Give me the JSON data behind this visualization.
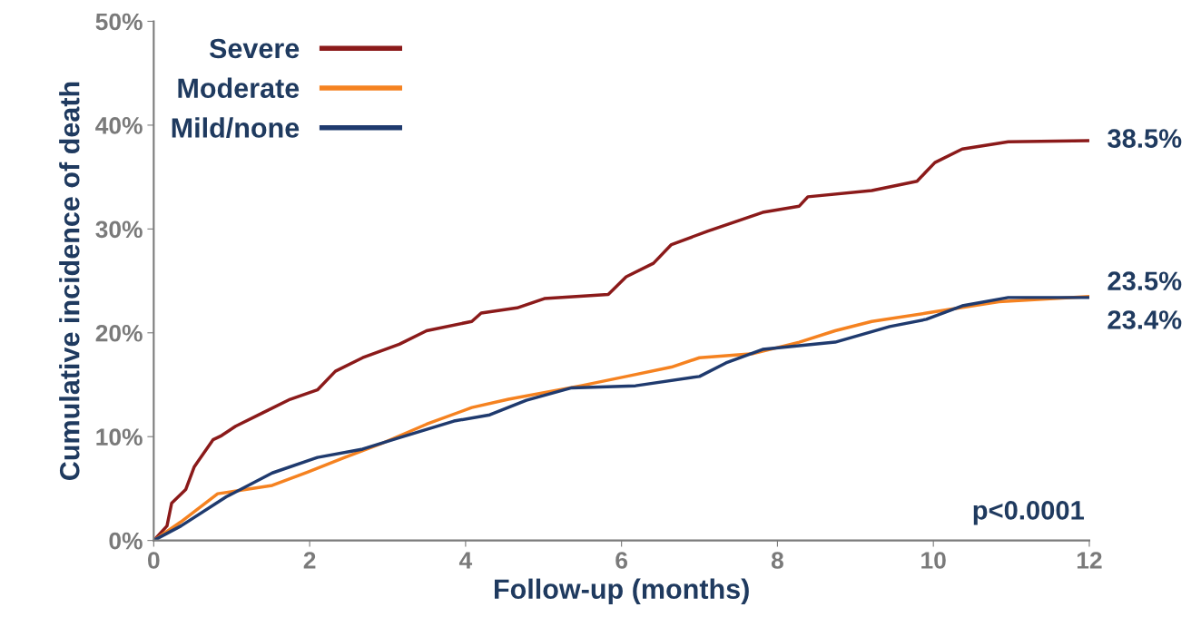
{
  "chart_data": {
    "type": "line",
    "xlabel": "Follow-up (months)",
    "ylabel": "Cumulative incidence of death",
    "xlim": [
      0,
      12
    ],
    "xticks": [
      0,
      2,
      4,
      6,
      8,
      10,
      12
    ],
    "ylim": [
      0,
      50
    ],
    "yticks": [
      {
        "value": 0,
        "label": "0%"
      },
      {
        "value": 10,
        "label": "10%"
      },
      {
        "value": 20,
        "label": "20%"
      },
      {
        "value": 30,
        "label": "30%"
      },
      {
        "value": 40,
        "label": "40%"
      },
      {
        "value": 50,
        "label": "50%"
      }
    ],
    "grid": false,
    "legend": "top left",
    "marker": "none",
    "line_style": "solid",
    "series": [
      {
        "name": "Severe",
        "color": "#8b1a1a",
        "x": [
          0,
          0.17,
          0.23,
          0.41,
          0.52,
          0.76,
          0.87,
          1.05,
          1.4,
          1.75,
          2.1,
          2.33,
          2.68,
          3.15,
          3.5,
          4.08,
          4.2,
          4.66,
          5.01,
          5.83,
          6.06,
          6.41,
          6.64,
          7.11,
          7.81,
          8.28,
          8.39,
          9.21,
          9.79,
          10.02,
          10.37,
          10.96,
          12
        ],
        "values": [
          0,
          1.4,
          3.6,
          4.9,
          7.1,
          9.7,
          10.1,
          11,
          12.3,
          13.6,
          14.5,
          16.3,
          17.6,
          18.9,
          20.2,
          21.1,
          21.9,
          22.4,
          23.3,
          23.7,
          25.4,
          26.7,
          28.5,
          29.8,
          31.6,
          32.2,
          33.1,
          33.7,
          34.6,
          36.4,
          37.7,
          38.4,
          38.5
        ]
      },
      {
        "name": "Moderate",
        "color": "#f58220",
        "x": [
          0,
          0.35,
          0.82,
          1.52,
          1.98,
          2.45,
          2.91,
          3.5,
          4.08,
          4.55,
          5.48,
          6.06,
          6.64,
          7.0,
          7.69,
          8.28,
          8.74,
          9.21,
          9.91,
          10.84,
          12
        ],
        "values": [
          0,
          1.8,
          4.5,
          5.3,
          6.6,
          8.0,
          9.3,
          11.2,
          12.8,
          13.6,
          14.9,
          15.8,
          16.7,
          17.6,
          18.0,
          19.1,
          20.2,
          21.1,
          21.9,
          23.0,
          23.5
        ]
      },
      {
        "name": "Mild/none",
        "color": "#1f3a6e",
        "x": [
          0,
          0.35,
          0.93,
          1.52,
          2.1,
          2.68,
          3.15,
          3.85,
          4.31,
          4.78,
          5.36,
          6.18,
          7.0,
          7.34,
          7.81,
          8.74,
          9.44,
          9.91,
          10.37,
          10.96,
          12
        ],
        "values": [
          0,
          1.4,
          4.2,
          6.5,
          8.0,
          8.8,
          9.9,
          11.5,
          12.1,
          13.5,
          14.7,
          14.9,
          15.8,
          17.1,
          18.4,
          19.1,
          20.6,
          21.3,
          22.6,
          23.4,
          23.4
        ]
      }
    ],
    "annotations": [
      "38.5%",
      "23.5%",
      "23.4%",
      "p<0.0001"
    ]
  }
}
